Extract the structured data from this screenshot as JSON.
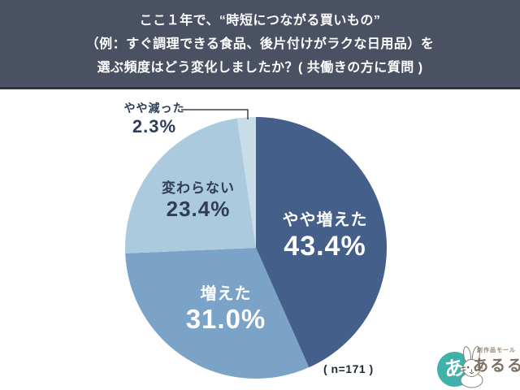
{
  "header": {
    "lines": [
      "ここ１年で、“時短につながる買いもの”",
      "（例：すぐ調理できる食品、後片付けがラクな日用品）を",
      "選ぶ頻度はどう変化しましたか？( 共働きの方に質問 )"
    ]
  },
  "chart_data": {
    "type": "pie",
    "title": "ここ１年で、“時短につながる買いもの”（例：すぐ調理できる食品、後片付けがラクな日用品）を選ぶ頻度はどう変化しましたか？( 共働きの方に質問 )",
    "start_angle": "top",
    "direction": "clockwise",
    "segments": [
      {
        "label": "やや増えた",
        "value": 43.4,
        "display": "43.4%",
        "color": "#44608a",
        "text_color": "#ffffff"
      },
      {
        "label": "増えた",
        "value": 31.0,
        "display": "31.0%",
        "color": "#7aa3c7",
        "text_color": "#ffffff"
      },
      {
        "label": "変わらない",
        "value": 23.4,
        "display": "23.4%",
        "color": "#abcade",
        "text_color": "#2f3d56"
      },
      {
        "label": "やや減った",
        "value": 2.3,
        "display": "2.3%",
        "color": "#c9dcea",
        "text_color": "#2f3d56"
      }
    ],
    "sample_note": "( n=171 )",
    "legend": "none",
    "labels_on_slices": true
  },
  "logo": {
    "tagline": "創作品モール",
    "name": "あるる",
    "mark": "あ"
  },
  "colors": {
    "header_bg": "#4a5162",
    "header_border": "#2b3346",
    "background": "#ffffff",
    "leader_line": "#39424f",
    "note_text": "#1f2736",
    "logo_teal": "#3fb1a9",
    "logo_name_text": "#7e6f63",
    "logo_tagline_text": "#8d7f73"
  }
}
